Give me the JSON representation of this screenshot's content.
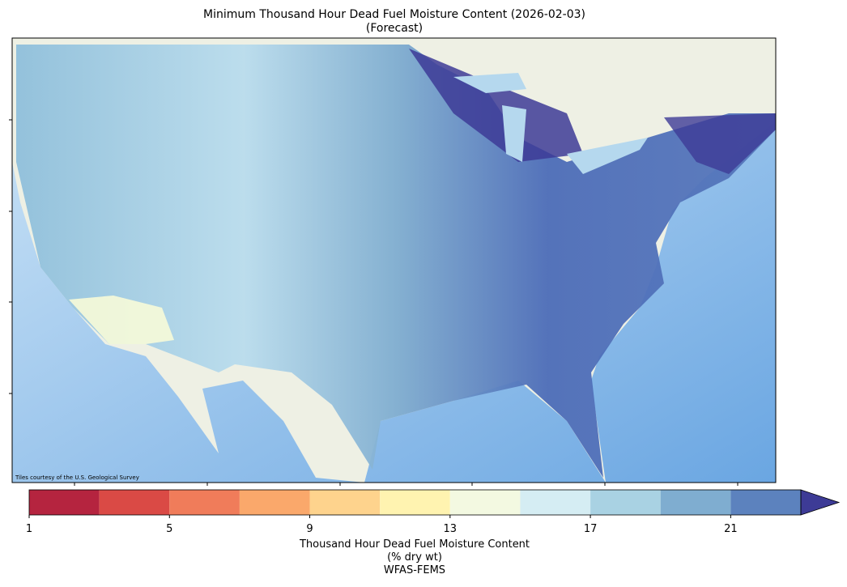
{
  "title": [
    "Minimum Thousand Hour Dead Fuel Moisture Content (2026-02-03)",
    "(Forecast)"
  ],
  "attribution": "Tiles courtesy of the U.S. Geological Survey",
  "colorbar": {
    "bounds": [
      1,
      3,
      5,
      7,
      9,
      11,
      13,
      15,
      17,
      19,
      21,
      23
    ],
    "colors": [
      "#b5243f",
      "#da4a45",
      "#f07c5a",
      "#faa86b",
      "#fed38d",
      "#fff3b0",
      "#f3f9e1",
      "#d5edf3",
      "#a9d2e3",
      "#7fadd0",
      "#5c82be"
    ],
    "extend_color": "#3d3b96",
    "ticks": [
      1,
      5,
      9,
      13,
      17,
      21
    ],
    "label": [
      "Thousand Hour Dead Fuel Moisture Content",
      "(% dry wt)",
      "WFAS-FEMS"
    ]
  }
}
